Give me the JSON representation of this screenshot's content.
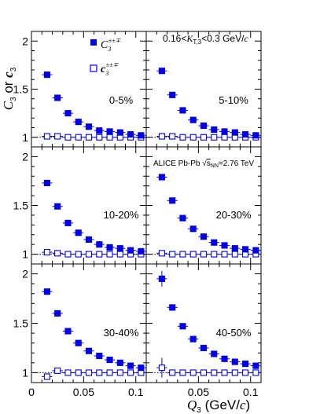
{
  "figure": {
    "ylabel": "C3 or c3",
    "xlabel": "Q3 (GeV/c)",
    "kt_label": "0.16<KT,3<0.3 GeV/c",
    "alice_label": "ALICE Pb-Pb √sNN=2.76 TeV",
    "legend": {
      "full": "C3±±∓",
      "cumulant": "c3±±∓"
    }
  },
  "chart_data": [
    {
      "type": "scatter",
      "centrality": "0-5%",
      "xlim": [
        0,
        0.11
      ],
      "ylim": [
        0.9,
        2.1
      ],
      "yticks": [
        "1",
        "1.5",
        "2"
      ],
      "xticks": [],
      "series": [
        {
          "name": "C3±±∓",
          "marker": "filled-square",
          "x": [
            0.015,
            0.025,
            0.035,
            0.045,
            0.055,
            0.065,
            0.075,
            0.085,
            0.095,
            0.105
          ],
          "y": [
            1.65,
            1.41,
            1.25,
            1.16,
            1.11,
            1.07,
            1.06,
            1.05,
            1.03,
            1.02
          ],
          "yerr": []
        },
        {
          "name": "c3±±∓",
          "marker": "open-square",
          "x": [
            0.015,
            0.025,
            0.035,
            0.045,
            0.055,
            0.065,
            0.075,
            0.085,
            0.095,
            0.105
          ],
          "y": [
            1.01,
            1.01,
            1.0,
            1.0,
            1.0,
            1.0,
            1.0,
            1.0,
            1.0,
            1.0
          ],
          "yerr": []
        }
      ]
    },
    {
      "type": "scatter",
      "centrality": "5-10%",
      "xlim": [
        0,
        0.11
      ],
      "ylim": [
        0.9,
        2.1
      ],
      "yticks": [],
      "xticks": [],
      "series": [
        {
          "name": "C3±±∓",
          "marker": "filled-square",
          "x": [
            0.015,
            0.025,
            0.035,
            0.045,
            0.055,
            0.065,
            0.075,
            0.085,
            0.095,
            0.105
          ],
          "y": [
            1.69,
            1.44,
            1.28,
            1.18,
            1.12,
            1.08,
            1.06,
            1.05,
            1.03,
            1.02
          ],
          "yerr": []
        },
        {
          "name": "c3±±∓",
          "marker": "open-square",
          "x": [
            0.015,
            0.025,
            0.035,
            0.045,
            0.055,
            0.065,
            0.075,
            0.085,
            0.095,
            0.105
          ],
          "y": [
            1.01,
            1.01,
            1.0,
            1.0,
            1.0,
            1.0,
            1.0,
            1.0,
            1.0,
            1.0
          ],
          "yerr": []
        }
      ]
    },
    {
      "type": "scatter",
      "centrality": "10-20%",
      "xlim": [
        0,
        0.11
      ],
      "ylim": [
        0.9,
        2.1
      ],
      "yticks": [
        "1",
        "1.5",
        "2"
      ],
      "xticks": [],
      "series": [
        {
          "name": "C3±±∓",
          "marker": "filled-square",
          "x": [
            0.015,
            0.025,
            0.035,
            0.045,
            0.055,
            0.065,
            0.075,
            0.085,
            0.095,
            0.105
          ],
          "y": [
            1.73,
            1.49,
            1.32,
            1.22,
            1.15,
            1.1,
            1.07,
            1.06,
            1.04,
            1.03
          ],
          "yerr": []
        },
        {
          "name": "c3±±∓",
          "marker": "open-square",
          "x": [
            0.015,
            0.025,
            0.035,
            0.045,
            0.055,
            0.065,
            0.075,
            0.085,
            0.095,
            0.105
          ],
          "y": [
            1.02,
            1.01,
            1.0,
            1.0,
            1.0,
            1.0,
            1.0,
            1.0,
            1.0,
            1.0
          ],
          "yerr": []
        }
      ]
    },
    {
      "type": "scatter",
      "centrality": "20-30%",
      "xlim": [
        0,
        0.11
      ],
      "ylim": [
        0.9,
        2.1
      ],
      "yticks": [],
      "xticks": [],
      "series": [
        {
          "name": "C3±±∓",
          "marker": "filled-square",
          "x": [
            0.015,
            0.025,
            0.035,
            0.045,
            0.055,
            0.065,
            0.075,
            0.085,
            0.095,
            0.105
          ],
          "y": [
            1.79,
            1.55,
            1.37,
            1.26,
            1.18,
            1.12,
            1.09,
            1.06,
            1.05,
            1.04
          ],
          "yerr": []
        },
        {
          "name": "c3±±∓",
          "marker": "open-square",
          "x": [
            0.015,
            0.025,
            0.035,
            0.045,
            0.055,
            0.065,
            0.075,
            0.085,
            0.095,
            0.105
          ],
          "y": [
            1.01,
            1.0,
            1.0,
            1.0,
            1.0,
            1.0,
            1.0,
            1.0,
            1.0,
            1.0
          ],
          "yerr": []
        }
      ]
    },
    {
      "type": "scatter",
      "centrality": "30-40%",
      "xlim": [
        0,
        0.11
      ],
      "ylim": [
        0.9,
        2.1
      ],
      "yticks": [
        "1",
        "1.5",
        "2"
      ],
      "xticks": [
        "0",
        "0.05",
        "0.1"
      ],
      "series": [
        {
          "name": "C3±±∓",
          "marker": "filled-square",
          "x": [
            0.015,
            0.025,
            0.035,
            0.045,
            0.055,
            0.065,
            0.075,
            0.085,
            0.095,
            0.105
          ],
          "y": [
            1.82,
            1.6,
            1.42,
            1.3,
            1.22,
            1.17,
            1.13,
            1.1,
            1.07,
            1.05
          ],
          "yerr": []
        },
        {
          "name": "c3±±∓",
          "marker": "open-square",
          "x": [
            0.015,
            0.025,
            0.035,
            0.045,
            0.055,
            0.065,
            0.075,
            0.085,
            0.095,
            0.105
          ],
          "y": [
            0.96,
            1.02,
            1.0,
            1.0,
            1.0,
            1.0,
            1.0,
            1.0,
            1.0,
            1.0
          ],
          "yerr": [
            0.03,
            0.02,
            0,
            0,
            0,
            0,
            0,
            0,
            0,
            0
          ]
        }
      ]
    },
    {
      "type": "scatter",
      "centrality": "40-50%",
      "xlim": [
        0,
        0.11
      ],
      "ylim": [
        0.9,
        2.1
      ],
      "yticks": [],
      "xticks": [
        "0.05",
        "0.1"
      ],
      "series": [
        {
          "name": "C3±±∓",
          "marker": "filled-square",
          "x": [
            0.015,
            0.025,
            0.035,
            0.045,
            0.055,
            0.065,
            0.075,
            0.085,
            0.095,
            0.105
          ],
          "y": [
            1.95,
            1.66,
            1.47,
            1.34,
            1.25,
            1.19,
            1.14,
            1.11,
            1.09,
            1.07
          ],
          "yerr": [
            0.08,
            0.03,
            0,
            0,
            0,
            0,
            0,
            0,
            0,
            0
          ]
        },
        {
          "name": "c3±±∓",
          "marker": "open-square",
          "x": [
            0.015,
            0.025,
            0.035,
            0.045,
            0.055,
            0.065,
            0.075,
            0.085,
            0.095,
            0.105
          ],
          "y": [
            1.05,
            1.0,
            1.0,
            1.0,
            1.0,
            1.0,
            1.0,
            1.0,
            1.0,
            1.0
          ],
          "yerr": [
            0.1,
            0.02,
            0,
            0,
            0,
            0,
            0,
            0,
            0,
            0
          ]
        }
      ]
    }
  ]
}
